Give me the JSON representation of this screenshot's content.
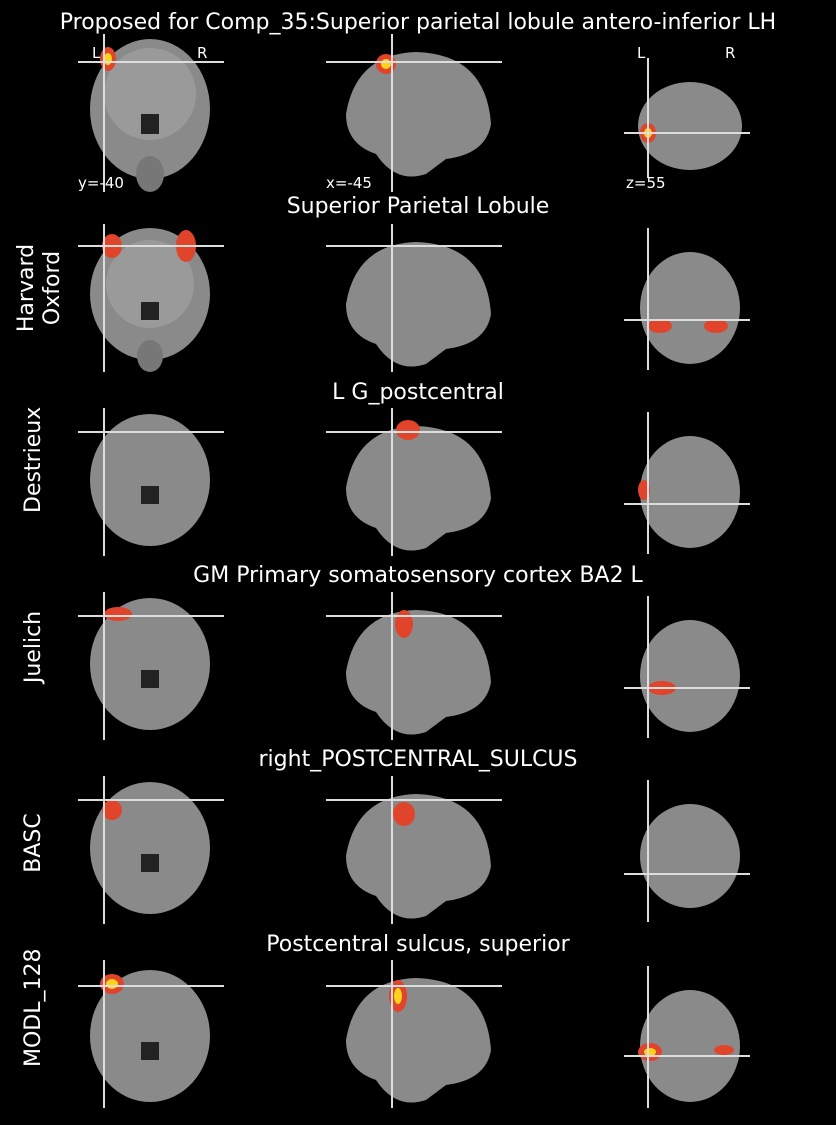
{
  "figure": {
    "main_title": "Proposed for Comp_35:Superior parietal lobule antero-inferior LH",
    "orientation": {
      "left": "L",
      "right": "R"
    },
    "coords": {
      "y": "y=-40",
      "x": "x=-45",
      "z": "z=55"
    },
    "colors": {
      "background": "#000000",
      "brain_gray": "#8a8a8a",
      "overlay_red": "#e0442a",
      "overlay_hot": "#ffd21a"
    },
    "rows": [
      {
        "atlas": "",
        "region": ""
      },
      {
        "atlas": "Harvard\nOxford",
        "region": "Superior Parietal Lobule"
      },
      {
        "atlas": "Destrieux",
        "region": "L G_postcentral"
      },
      {
        "atlas": "Juelich",
        "region": "GM Primary somatosensory cortex BA2 L"
      },
      {
        "atlas": "BASC",
        "region": "right_POSTCENTRAL_SULCUS"
      },
      {
        "atlas": "MODL_128",
        "region": "Postcentral sulcus, superior"
      }
    ]
  }
}
